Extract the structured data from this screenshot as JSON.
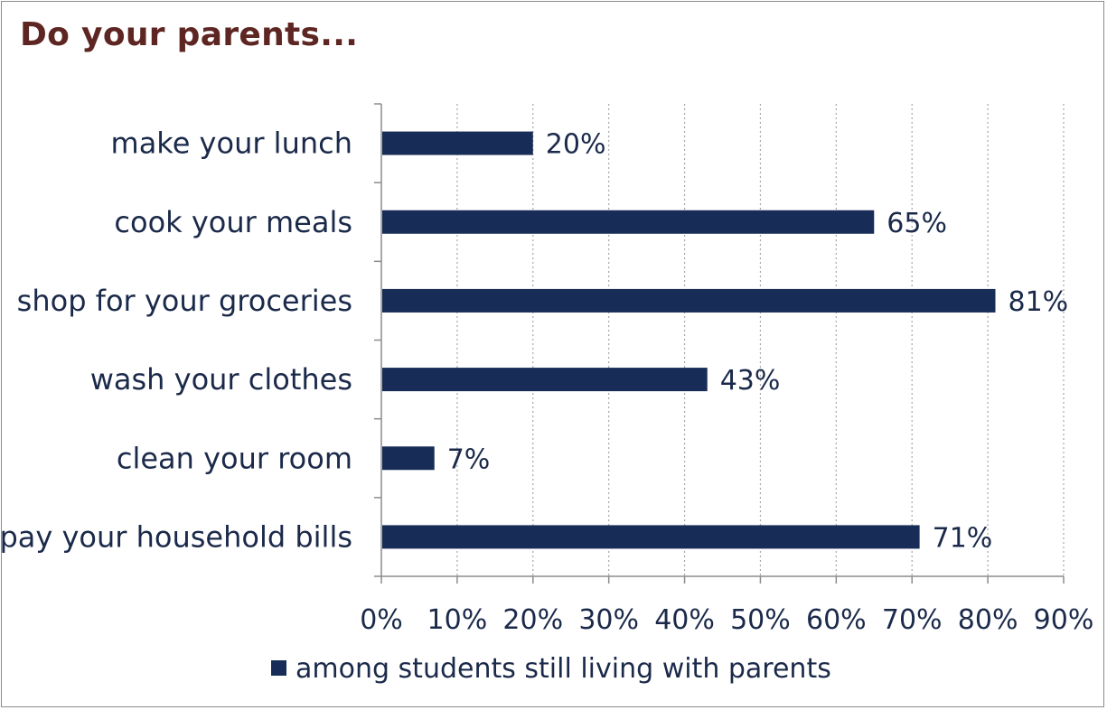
{
  "title": "Do your parents...",
  "colors": {
    "bar": "#172d57",
    "title": "#5e2622",
    "text": "#1b2a4a",
    "grid": "#a6a6a6",
    "axis": "#8c8c8c"
  },
  "chart_data": {
    "type": "bar",
    "orientation": "horizontal",
    "categories": [
      "make your lunch",
      "cook your meals",
      "shop for your groceries",
      "wash your clothes",
      "clean your room",
      "pay your household bills"
    ],
    "series": [
      {
        "name": "among students still living with parents",
        "values": [
          20,
          65,
          81,
          43,
          7,
          71
        ],
        "labels": [
          "20%",
          "65%",
          "81%",
          "43%",
          "7%",
          "71%"
        ]
      }
    ],
    "xlim": [
      0,
      90
    ],
    "x_ticks": [
      0,
      10,
      20,
      30,
      40,
      50,
      60,
      70,
      80,
      90
    ],
    "x_tick_labels": [
      "0%",
      "10%",
      "20%",
      "30%",
      "40%",
      "50%",
      "60%",
      "70%",
      "80%",
      "90%"
    ],
    "grid": "vertical dotted",
    "legend_position": "bottom"
  }
}
